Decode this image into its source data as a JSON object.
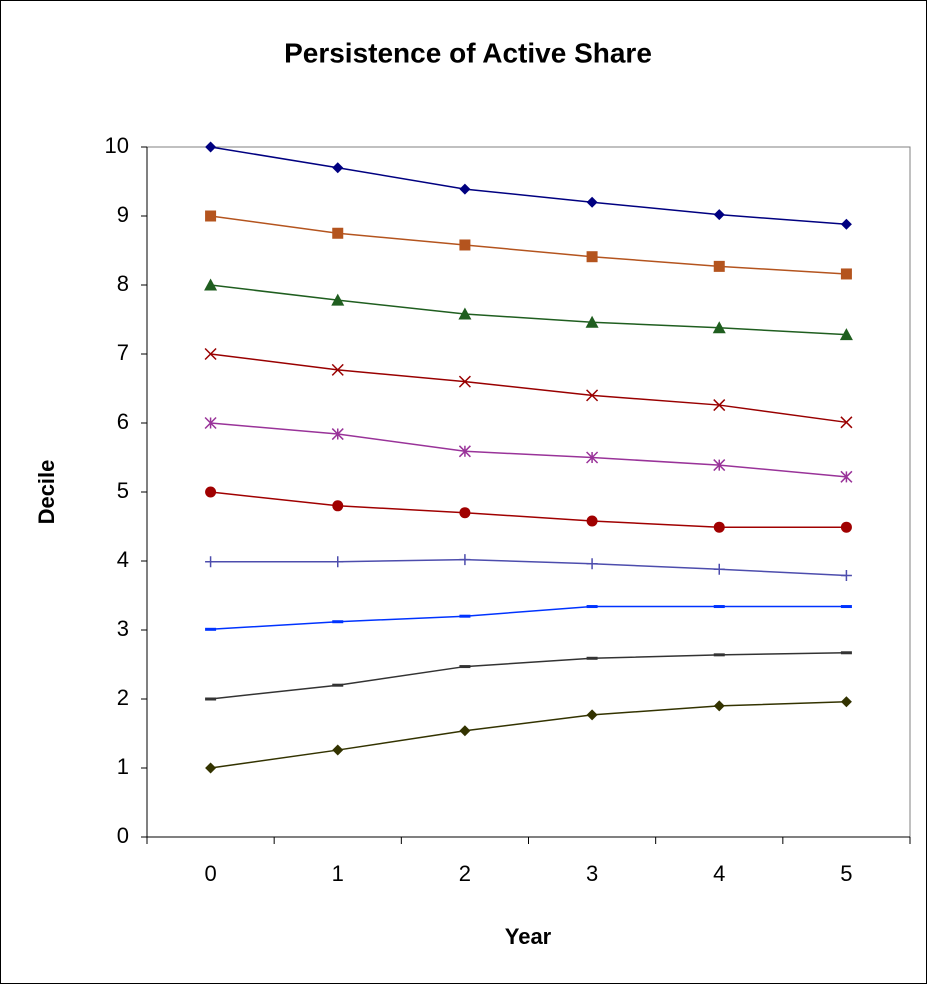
{
  "chart_data": {
    "type": "line",
    "title": "Persistence of Active Share",
    "x_label": "Year",
    "y_label": "Decile",
    "categories": [
      "0",
      "1",
      "2",
      "3",
      "4",
      "5"
    ],
    "ylim": [
      0,
      10
    ],
    "yticks": [
      0,
      1,
      2,
      3,
      4,
      5,
      6,
      7,
      8,
      9,
      10
    ],
    "grid": false,
    "series": [
      {
        "color": "#000080",
        "marker": "diamond",
        "values": [
          10,
          9.7,
          9.39,
          9.2,
          9.02,
          8.88
        ]
      },
      {
        "color": "#b4541e",
        "marker": "square",
        "values": [
          9,
          8.75,
          8.58,
          8.41,
          8.27,
          8.16
        ]
      },
      {
        "color": "#1f5e1f",
        "marker": "triangle",
        "values": [
          8,
          7.78,
          7.58,
          7.46,
          7.38,
          7.28
        ]
      },
      {
        "color": "#990000",
        "marker": "x",
        "values": [
          7,
          6.77,
          6.6,
          6.4,
          6.26,
          6.01
        ]
      },
      {
        "color": "#993399",
        "marker": "star",
        "values": [
          6,
          5.84,
          5.59,
          5.5,
          5.39,
          5.22
        ]
      },
      {
        "color": "#a00000",
        "marker": "circle",
        "values": [
          5,
          4.8,
          4.7,
          4.58,
          4.49,
          4.49
        ]
      },
      {
        "color": "#4d4dad",
        "marker": "plus",
        "values": [
          3.99,
          3.99,
          4.02,
          3.96,
          3.88,
          3.79
        ]
      },
      {
        "color": "#0033ff",
        "marker": "dash",
        "values": [
          3.01,
          3.12,
          3.2,
          3.34,
          3.34,
          3.34
        ]
      },
      {
        "color": "#333333",
        "marker": "dash",
        "values": [
          2,
          2.2,
          2.47,
          2.59,
          2.64,
          2.67
        ]
      },
      {
        "color": "#333300",
        "marker": "diamond",
        "values": [
          1,
          1.26,
          1.54,
          1.77,
          1.9,
          1.96
        ]
      }
    ]
  }
}
